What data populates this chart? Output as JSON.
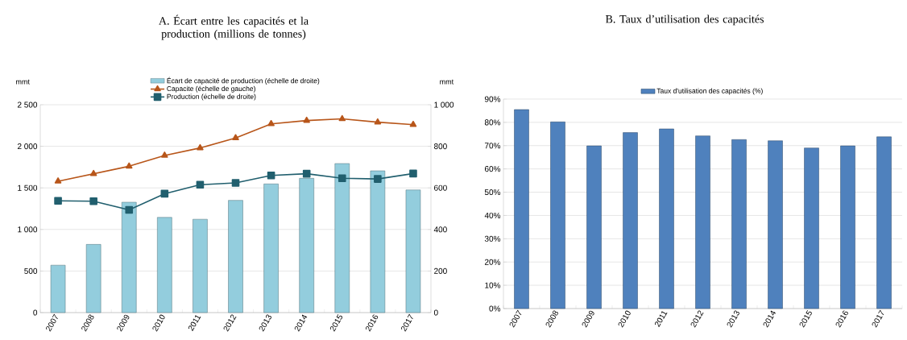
{
  "chart_data": [
    {
      "type": "bar",
      "title": "A. Écart entre les capacités et la production (millions de tonnes)",
      "ylabel": "mmt",
      "y2label": "mmt",
      "categories": [
        "2007",
        "2008",
        "2009",
        "2010",
        "2011",
        "2012",
        "2013",
        "2014",
        "2015",
        "2016",
        "2017"
      ],
      "series": [
        {
          "name": "Écart de capacité de production (échelle de droite)",
          "type": "bar",
          "axis": "y2",
          "color": "#93cddd",
          "values": [
            228,
            328,
            531,
            458,
            449,
            540,
            619,
            646,
            717,
            682,
            590
          ]
        },
        {
          "name": "Capacite (échelle de gauche)",
          "type": "line",
          "marker": "triangle",
          "color": "#b8561a",
          "values": [
            1580,
            1670,
            1760,
            1890,
            1980,
            2100,
            2270,
            2310,
            2330,
            2290,
            2260
          ]
        },
        {
          "name": "Production (échelle de droite)",
          "type": "line",
          "axis": "y2",
          "marker": "square",
          "color": "#215f6e",
          "values": [
            538,
            536,
            494,
            572,
            615,
            624,
            660,
            668,
            646,
            643,
            669
          ]
        }
      ],
      "ylim": [
        0,
        2500
      ],
      "yticks": [
        0,
        500,
        {
          "value": 1000,
          "label": "1 000"
        },
        {
          "value": 1500,
          "label": "1 500"
        },
        {
          "value": 2000,
          "label": "2 000"
        },
        {
          "value": 2500,
          "label": "2 500"
        }
      ],
      "y2lim": [
        0,
        1000
      ],
      "y2ticks": [
        0,
        200,
        400,
        600,
        800,
        {
          "value": 1000,
          "label": "1 000"
        }
      ],
      "grid": "y",
      "legend": "top"
    },
    {
      "type": "bar",
      "title": "B. Taux d’utilisation des capacités",
      "categories": [
        "2007",
        "2008",
        "2009",
        "2010",
        "2011",
        "2012",
        "2013",
        "2014",
        "2015",
        "2016",
        "2017"
      ],
      "series": [
        {
          "name": "Taux d'utilisation des capacités (%)",
          "color": "#4f81bd",
          "values": [
            85.5,
            80.2,
            69.9,
            75.6,
            77.2,
            74.2,
            72.6,
            72.1,
            69.0,
            69.9,
            73.8
          ]
        }
      ],
      "ylim": [
        0,
        90
      ],
      "yticks": [
        {
          "value": 0,
          "label": "0%"
        },
        {
          "value": 10,
          "label": "10%"
        },
        {
          "value": 20,
          "label": "20%"
        },
        {
          "value": 30,
          "label": "30%"
        },
        {
          "value": 40,
          "label": "40%"
        },
        {
          "value": 50,
          "label": "50%"
        },
        {
          "value": 60,
          "label": "60%"
        },
        {
          "value": 70,
          "label": "70%"
        },
        {
          "value": 80,
          "label": "80%"
        },
        {
          "value": 90,
          "label": "90%"
        }
      ],
      "grid": "y",
      "legend": "top"
    }
  ]
}
